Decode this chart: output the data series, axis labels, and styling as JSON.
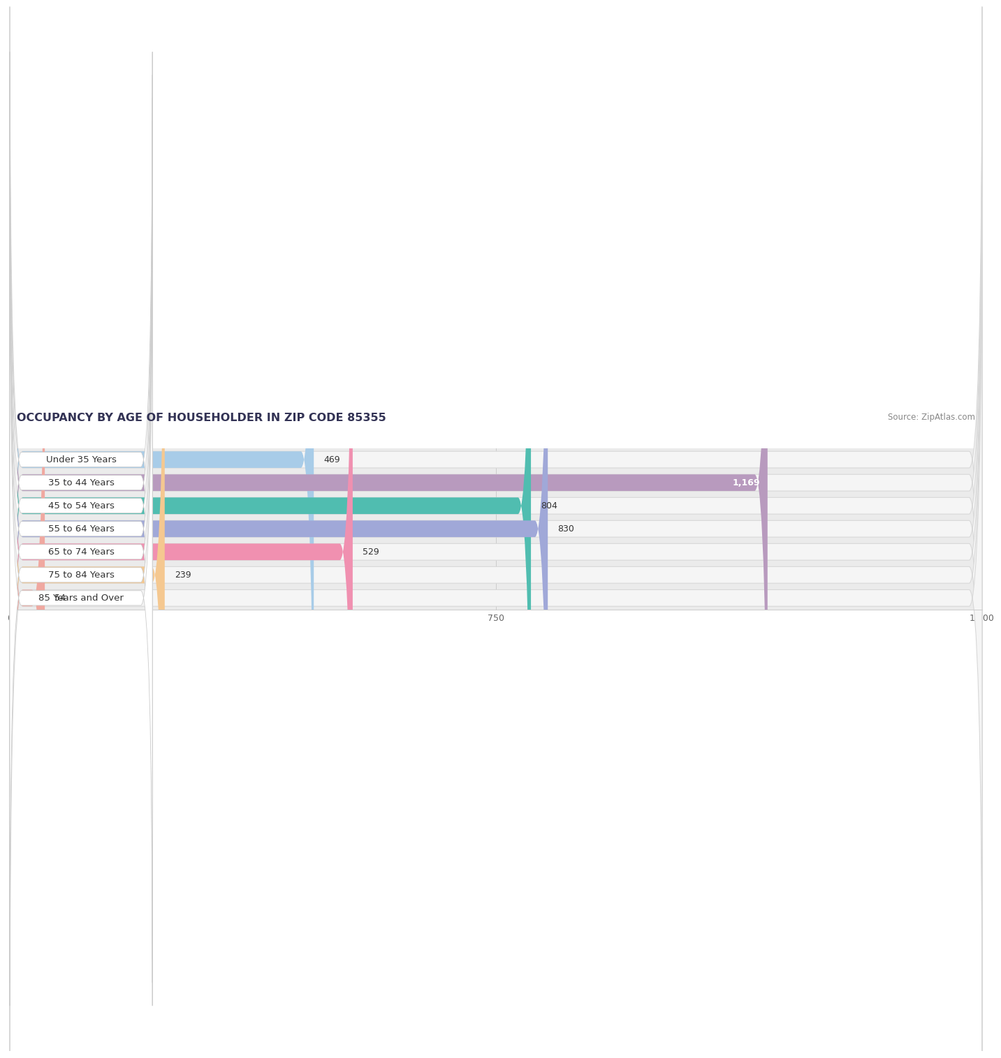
{
  "title": "OCCUPANCY BY AGE OF HOUSEHOLDER IN ZIP CODE 85355",
  "source": "Source: ZipAtlas.com",
  "categories": [
    "Under 35 Years",
    "35 to 44 Years",
    "45 to 54 Years",
    "55 to 64 Years",
    "65 to 74 Years",
    "75 to 84 Years",
    "85 Years and Over"
  ],
  "values": [
    469,
    1169,
    804,
    830,
    529,
    239,
    54
  ],
  "bar_colors": [
    "#a8cce8",
    "#b89abe",
    "#50bdb0",
    "#a0a8d8",
    "#f090b0",
    "#f5c890",
    "#f0a8a0"
  ],
  "xlim": [
    0,
    1500
  ],
  "xticks": [
    0,
    750,
    1500
  ],
  "fig_bg": "#ffffff",
  "chart_bg": "#ebebeb",
  "bar_bg": "#f5f5f5",
  "title_fontsize": 11.5,
  "source_fontsize": 8.5,
  "label_fontsize": 9.5,
  "value_fontsize": 9,
  "figsize": [
    14.06,
    3.4
  ]
}
